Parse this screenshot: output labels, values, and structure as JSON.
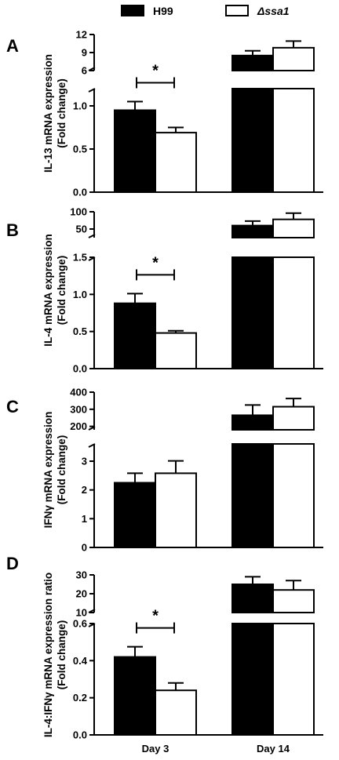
{
  "legend": [
    {
      "label": "H99",
      "fill": "#000000"
    },
    {
      "label": "Δssa1",
      "fill": "#ffffff"
    }
  ],
  "categories": [
    "Day 3",
    "Day 14"
  ],
  "chart_data": [
    {
      "panel": "A",
      "type": "bar",
      "ylabel": [
        "IL-13 mRNA expression",
        "(Fold change)"
      ],
      "categories": [
        "Day 3",
        "Day 14"
      ],
      "broken_axis": true,
      "lower_range": [
        0,
        1.2
      ],
      "lower_ticks": [
        "0.0",
        "0.5",
        "1.0"
      ],
      "upper_range": [
        6,
        12
      ],
      "upper_ticks": [
        "6",
        "9",
        "12"
      ],
      "series": [
        {
          "name": "H99",
          "values": [
            0.95,
            8.5
          ],
          "errors": [
            0.1,
            0.8
          ]
        },
        {
          "name": "Δssa1",
          "values": [
            0.69,
            9.8
          ],
          "errors": [
            0.06,
            1.1
          ]
        }
      ],
      "significance": {
        "category": "Day 3",
        "label": "*"
      }
    },
    {
      "panel": "B",
      "type": "bar",
      "ylabel": [
        "IL-4 mRNA expression",
        "(Fold change)"
      ],
      "categories": [
        "Day 3",
        "Day 14"
      ],
      "broken_axis": true,
      "lower_range": [
        0,
        1.5
      ],
      "lower_ticks": [
        "0.0",
        "0.5",
        "1.0",
        "1.5"
      ],
      "upper_range": [
        25,
        100
      ],
      "upper_ticks": [
        "50",
        "100"
      ],
      "series": [
        {
          "name": "H99",
          "values": [
            0.88,
            60
          ],
          "errors": [
            0.13,
            13
          ]
        },
        {
          "name": "Δssa1",
          "values": [
            0.48,
            78
          ],
          "errors": [
            0.03,
            18
          ]
        }
      ],
      "significance": {
        "category": "Day 3",
        "label": "*"
      }
    },
    {
      "panel": "C",
      "type": "bar",
      "ylabel": [
        "IFNγ mRNA expression",
        "(Fold change)"
      ],
      "categories": [
        "Day 3",
        "Day 14"
      ],
      "broken_axis": true,
      "lower_range": [
        0,
        3.6
      ],
      "lower_ticks": [
        "0",
        "1",
        "2",
        "3"
      ],
      "upper_range": [
        180,
        400
      ],
      "upper_ticks": [
        "200",
        "300",
        "400"
      ],
      "series": [
        {
          "name": "H99",
          "values": [
            2.25,
            265
          ],
          "errors": [
            0.33,
            60
          ]
        },
        {
          "name": "Δssa1",
          "values": [
            2.58,
            315
          ],
          "errors": [
            0.43,
            48
          ]
        }
      ],
      "significance": null
    },
    {
      "panel": "D",
      "type": "bar",
      "ylabel": [
        "IL-4:IFNγ mRNA expression ratio",
        "(Fold change)"
      ],
      "categories": [
        "Day 3",
        "Day 14"
      ],
      "broken_axis": true,
      "lower_range": [
        0,
        0.6
      ],
      "lower_ticks": [
        "0.0",
        "0.2",
        "0.4",
        "0.6"
      ],
      "upper_range": [
        10,
        30
      ],
      "upper_ticks": [
        "10",
        "20",
        "30"
      ],
      "series": [
        {
          "name": "H99",
          "values": [
            0.42,
            25
          ],
          "errors": [
            0.055,
            4
          ]
        },
        {
          "name": "Δssa1",
          "values": [
            0.24,
            22
          ],
          "errors": [
            0.04,
            5
          ]
        }
      ],
      "significance": {
        "category": "Day 3",
        "label": "*"
      }
    }
  ]
}
